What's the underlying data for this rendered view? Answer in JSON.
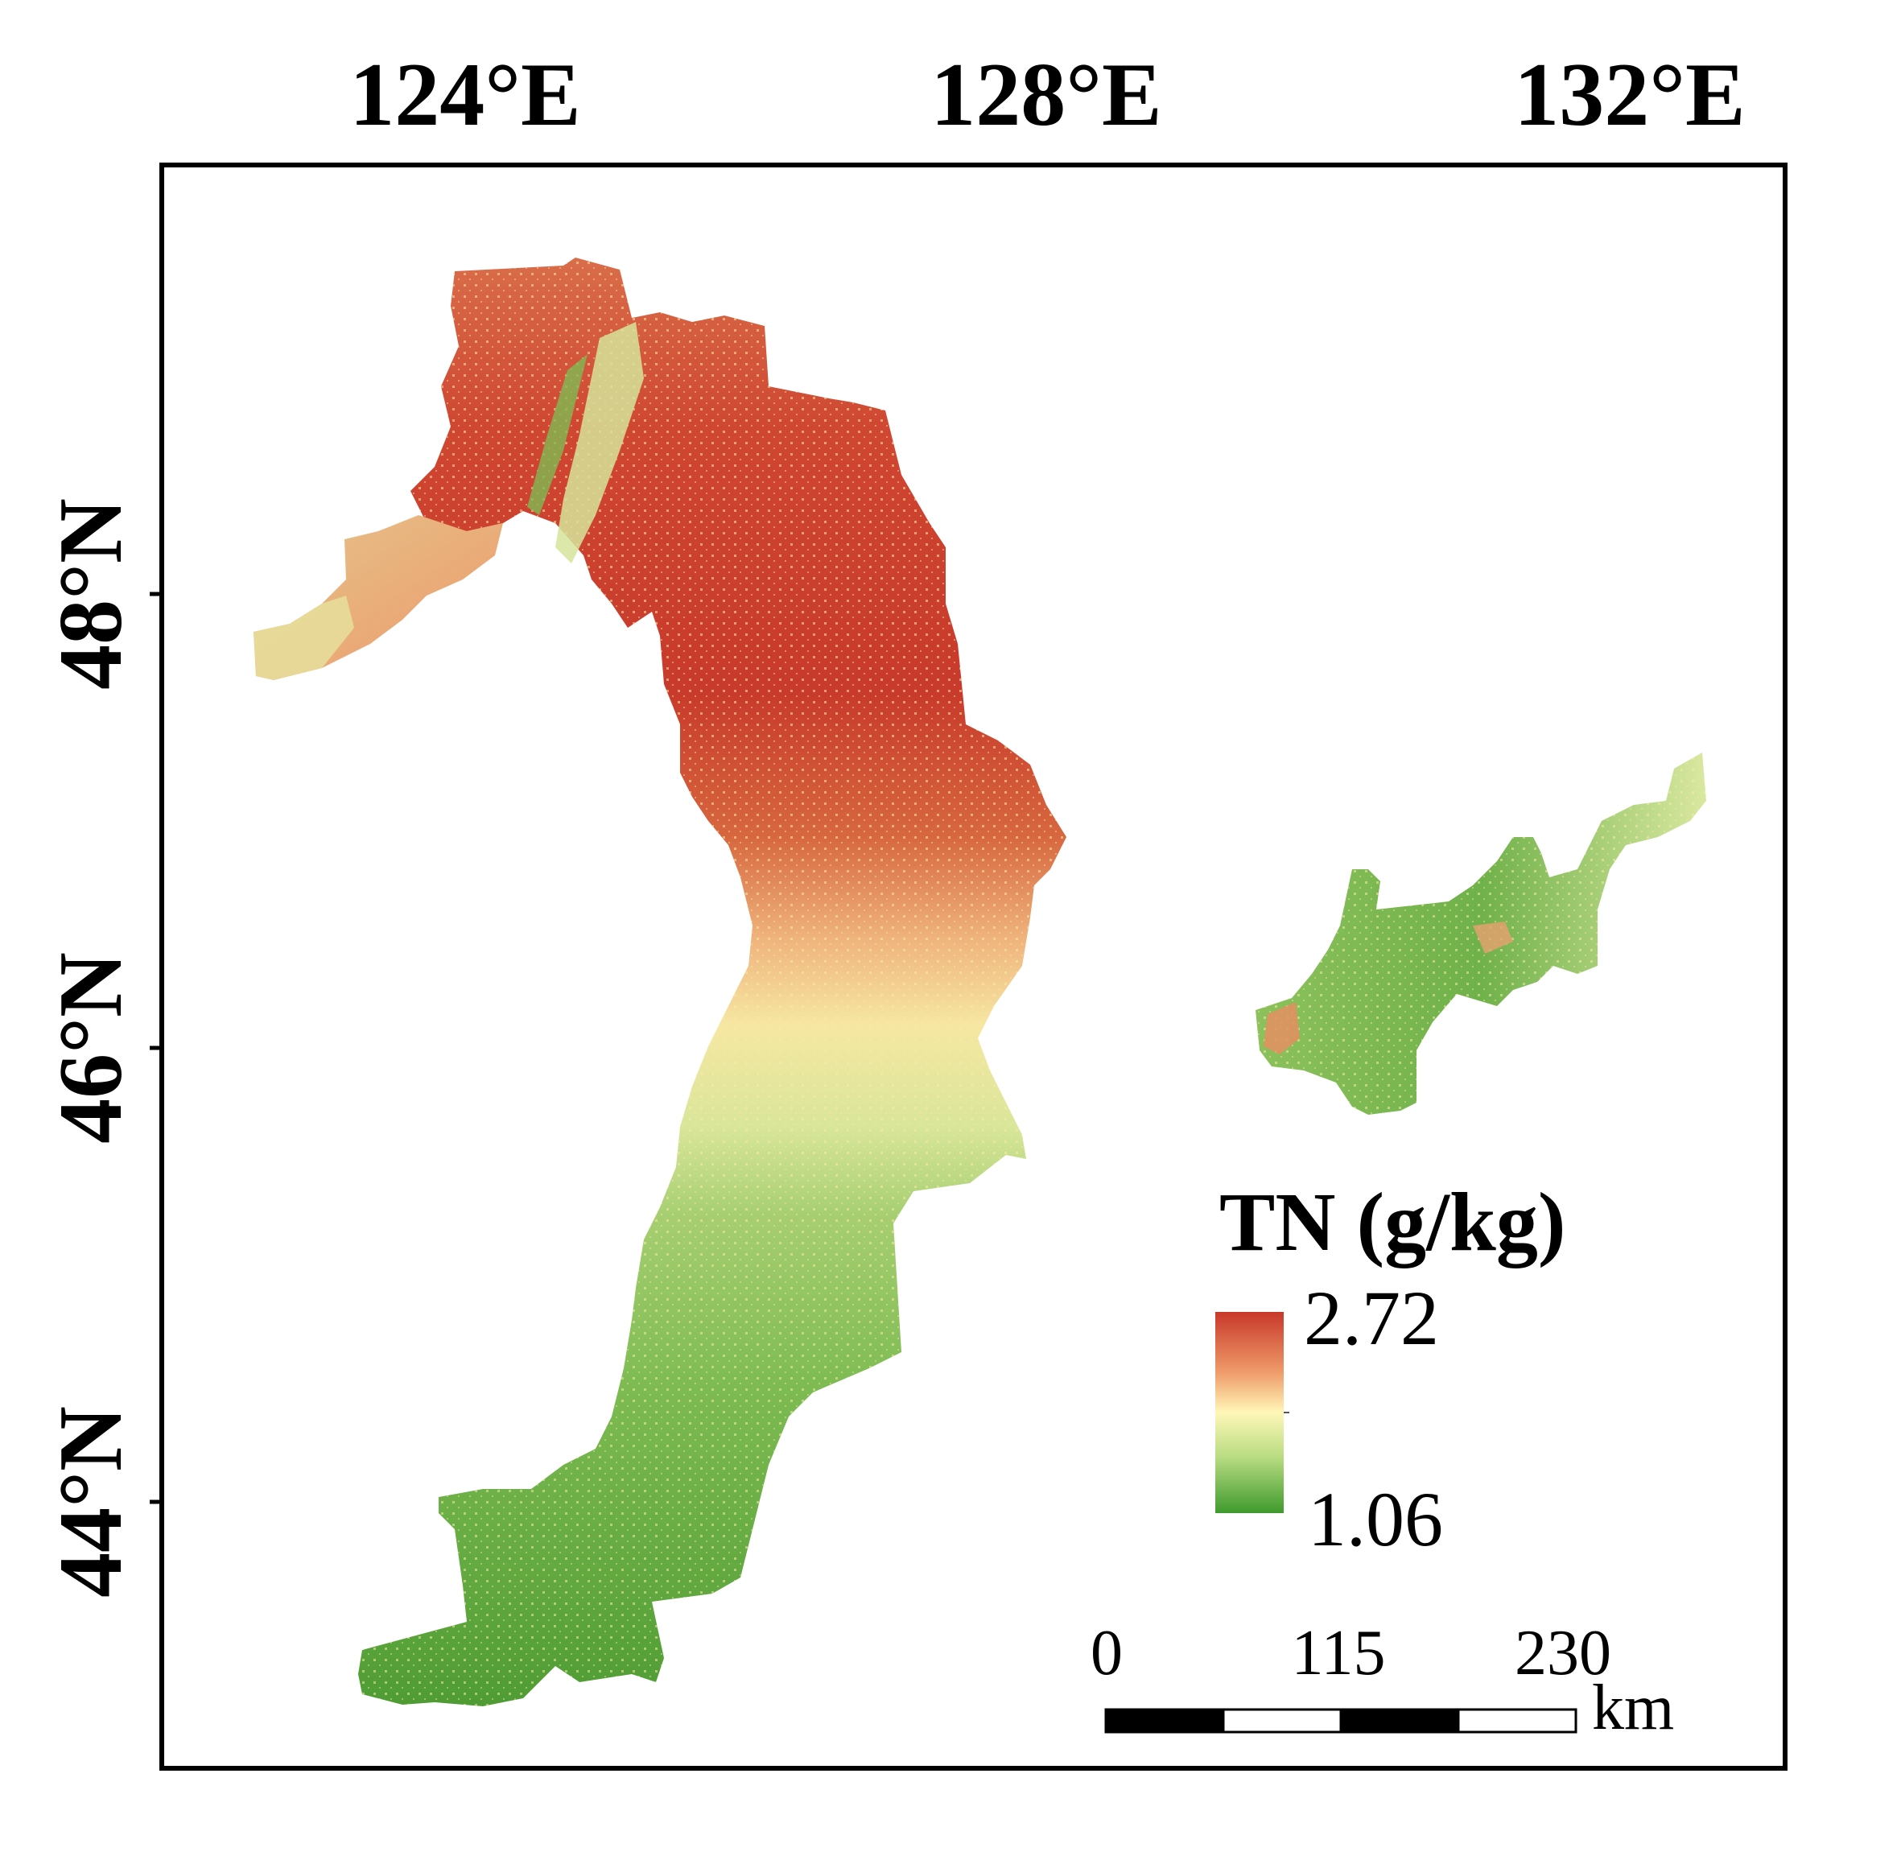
{
  "axes": {
    "longitude_ticks": [
      "124°E",
      "128°E",
      "132°E"
    ],
    "latitude_ticks": [
      "48°N",
      "46°N",
      "44°N"
    ]
  },
  "legend": {
    "title": "TN (g/kg)",
    "max_label": "2.72",
    "min_label": "1.06",
    "colors": {
      "high": "#c8382a",
      "mid": "#fff7b8",
      "low": "#3f9a2d"
    }
  },
  "scale_bar": {
    "labels": [
      "0",
      "115",
      "230"
    ],
    "unit": "km"
  },
  "colors": {
    "frame": "#000000",
    "high_tn": "#cf4a30",
    "mid_tn": "#f4e7a0",
    "low_tn": "#5fa83c"
  }
}
